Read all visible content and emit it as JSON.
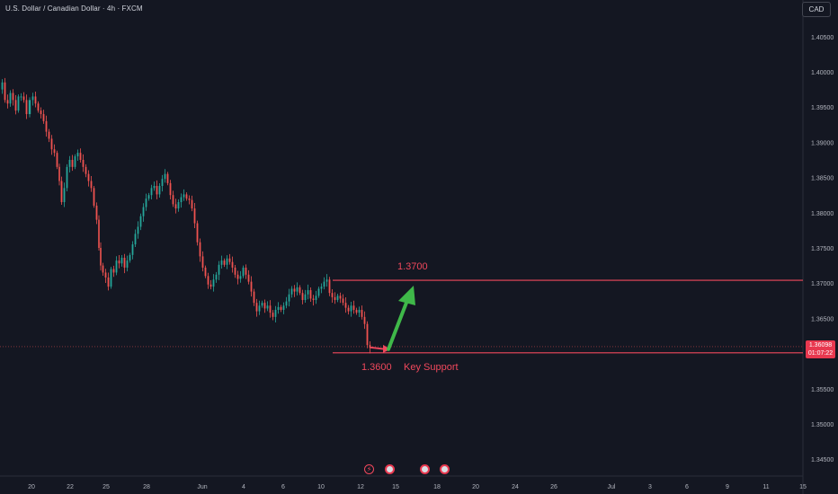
{
  "header": {
    "title": "U.S. Dollar / Canadian Dollar · 4h · FXCM"
  },
  "currency_button": "CAD",
  "last_price": {
    "value": "1.36098",
    "countdown": "01:07:22"
  },
  "annotations": {
    "resistance_label": "1.3700",
    "support_label": "1.3600",
    "support_text": "Key Support"
  },
  "colors": {
    "background": "#141722",
    "up": "#26a69a",
    "down": "#ef5350",
    "annotation": "#f0485c",
    "arrow": "#3fb849"
  },
  "events": [
    "lightning-icon",
    "us-flag-icon",
    "us-flag-icon",
    "us-flag-icon"
  ],
  "chart_data": {
    "type": "candlestick",
    "y_axis": {
      "range": [
        1.342,
        1.408
      ],
      "ticks": [
        "1.40500",
        "1.40000",
        "1.39500",
        "1.39000",
        "1.38500",
        "1.38000",
        "1.37500",
        "1.37000",
        "1.36500",
        "1.36000",
        "1.35500",
        "1.35000",
        "1.34500"
      ]
    },
    "x_axis": {
      "ticks": [
        "20",
        "22",
        "25",
        "28",
        "Jun",
        "4",
        "6",
        "10",
        "12",
        "15",
        "18",
        "20",
        "24",
        "26",
        "Jul",
        "3",
        "6",
        "9",
        "11",
        "15"
      ]
    },
    "close_path": [
      [
        0,
        1.3975
      ],
      [
        3,
        1.3985
      ],
      [
        6,
        1.396
      ],
      [
        9,
        1.3955
      ],
      [
        12,
        1.397
      ],
      [
        15,
        1.396
      ],
      [
        18,
        1.3945
      ],
      [
        21,
        1.3965
      ],
      [
        24,
        1.3965
      ],
      [
        27,
        1.396
      ],
      [
        30,
        1.394
      ],
      [
        34,
        1.396
      ],
      [
        37,
        1.3965
      ],
      [
        40,
        1.3955
      ],
      [
        43,
        1.3945
      ],
      [
        46,
        1.394
      ],
      [
        49,
        1.393
      ],
      [
        52,
        1.3915
      ],
      [
        55,
        1.3905
      ],
      [
        58,
        1.389
      ],
      [
        61,
        1.3885
      ],
      [
        64,
        1.3865
      ],
      [
        66,
        1.3845
      ],
      [
        69,
        1.3815
      ],
      [
        72,
        1.3835
      ],
      [
        75,
        1.3865
      ],
      [
        78,
        1.3875
      ],
      [
        81,
        1.3865
      ],
      [
        84,
        1.388
      ],
      [
        87,
        1.3885
      ],
      [
        90,
        1.3875
      ],
      [
        93,
        1.3865
      ],
      [
        96,
        1.3855
      ],
      [
        99,
        1.3845
      ],
      [
        102,
        1.3835
      ],
      [
        105,
        1.381
      ],
      [
        108,
        1.379
      ],
      [
        110,
        1.375
      ],
      [
        112,
        1.3725
      ],
      [
        115,
        1.3715
      ],
      [
        118,
        1.3708
      ],
      [
        121,
        1.3695
      ],
      [
        124,
        1.372
      ],
      [
        127,
        1.3715
      ],
      [
        130,
        1.3732
      ],
      [
        133,
        1.3728
      ],
      [
        136,
        1.3736
      ],
      [
        139,
        1.3722
      ],
      [
        142,
        1.3732
      ],
      [
        145,
        1.374
      ],
      [
        148,
        1.3755
      ],
      [
        151,
        1.377
      ],
      [
        154,
        1.378
      ],
      [
        157,
        1.3795
      ],
      [
        160,
        1.3808
      ],
      [
        163,
        1.382
      ],
      [
        166,
        1.3825
      ],
      [
        169,
        1.3835
      ],
      [
        172,
        1.3838
      ],
      [
        175,
        1.3826
      ],
      [
        178,
        1.3838
      ],
      [
        181,
        1.3848
      ],
      [
        184,
        1.3855
      ],
      [
        187,
        1.3842
      ],
      [
        190,
        1.3825
      ],
      [
        193,
        1.3812
      ],
      [
        196,
        1.3806
      ],
      [
        199,
        1.3815
      ],
      [
        202,
        1.3822
      ],
      [
        205,
        1.3826
      ],
      [
        208,
        1.382
      ],
      [
        211,
        1.3818
      ],
      [
        214,
        1.3806
      ],
      [
        217,
        1.3785
      ],
      [
        220,
        1.3758
      ],
      [
        223,
        1.3738
      ],
      [
        226,
        1.3722
      ],
      [
        229,
        1.371
      ],
      [
        232,
        1.3698
      ],
      [
        235,
        1.3695
      ],
      [
        238,
        1.3705
      ],
      [
        241,
        1.3712
      ],
      [
        244,
        1.3726
      ],
      [
        247,
        1.3732
      ],
      [
        250,
        1.3726
      ],
      [
        253,
        1.3735
      ],
      [
        256,
        1.373
      ],
      [
        259,
        1.3722
      ],
      [
        262,
        1.3712
      ],
      [
        265,
        1.3706
      ],
      [
        268,
        1.371
      ],
      [
        271,
        1.3722
      ],
      [
        274,
        1.3712
      ],
      [
        277,
        1.3702
      ],
      [
        280,
        1.3688
      ],
      [
        283,
        1.3672
      ],
      [
        286,
        1.366
      ],
      [
        289,
        1.3668
      ],
      [
        292,
        1.3672
      ],
      [
        295,
        1.3664
      ],
      [
        298,
        1.3668
      ],
      [
        301,
        1.3658
      ],
      [
        304,
        1.3652
      ],
      [
        307,
        1.3662
      ],
      [
        310,
        1.3666
      ],
      [
        313,
        1.3662
      ],
      [
        316,
        1.3668
      ],
      [
        319,
        1.3674
      ],
      [
        322,
        1.3684
      ],
      [
        325,
        1.3692
      ],
      [
        328,
        1.3688
      ],
      [
        331,
        1.3694
      ],
      [
        334,
        1.3686
      ],
      [
        337,
        1.3676
      ],
      [
        340,
        1.3684
      ],
      [
        343,
        1.369
      ],
      [
        346,
        1.3678
      ],
      [
        349,
        1.3676
      ],
      [
        352,
        1.3682
      ],
      [
        355,
        1.3692
      ],
      [
        358,
        1.3695
      ],
      [
        361,
        1.3702
      ],
      [
        364,
        1.3705
      ],
      [
        367,
        1.3686
      ],
      [
        370,
        1.368
      ],
      [
        373,
        1.3676
      ],
      [
        376,
        1.3682
      ],
      [
        379,
        1.3678
      ],
      [
        382,
        1.3672
      ],
      [
        385,
        1.3665
      ],
      [
        388,
        1.366
      ],
      [
        391,
        1.3668
      ],
      [
        394,
        1.3662
      ],
      [
        397,
        1.3658
      ],
      [
        400,
        1.3662
      ],
      [
        403,
        1.3652
      ],
      [
        406,
        1.3642
      ],
      [
        409,
        1.3612
      ],
      [
        412,
        1.3608
      ]
    ],
    "levels": [
      {
        "label": "1.3700",
        "value": 1.3704,
        "x_start": 370
      },
      {
        "label": "1.3600",
        "value": 1.3601,
        "x_start": 370
      }
    ],
    "last_price_line": 1.36098
  }
}
